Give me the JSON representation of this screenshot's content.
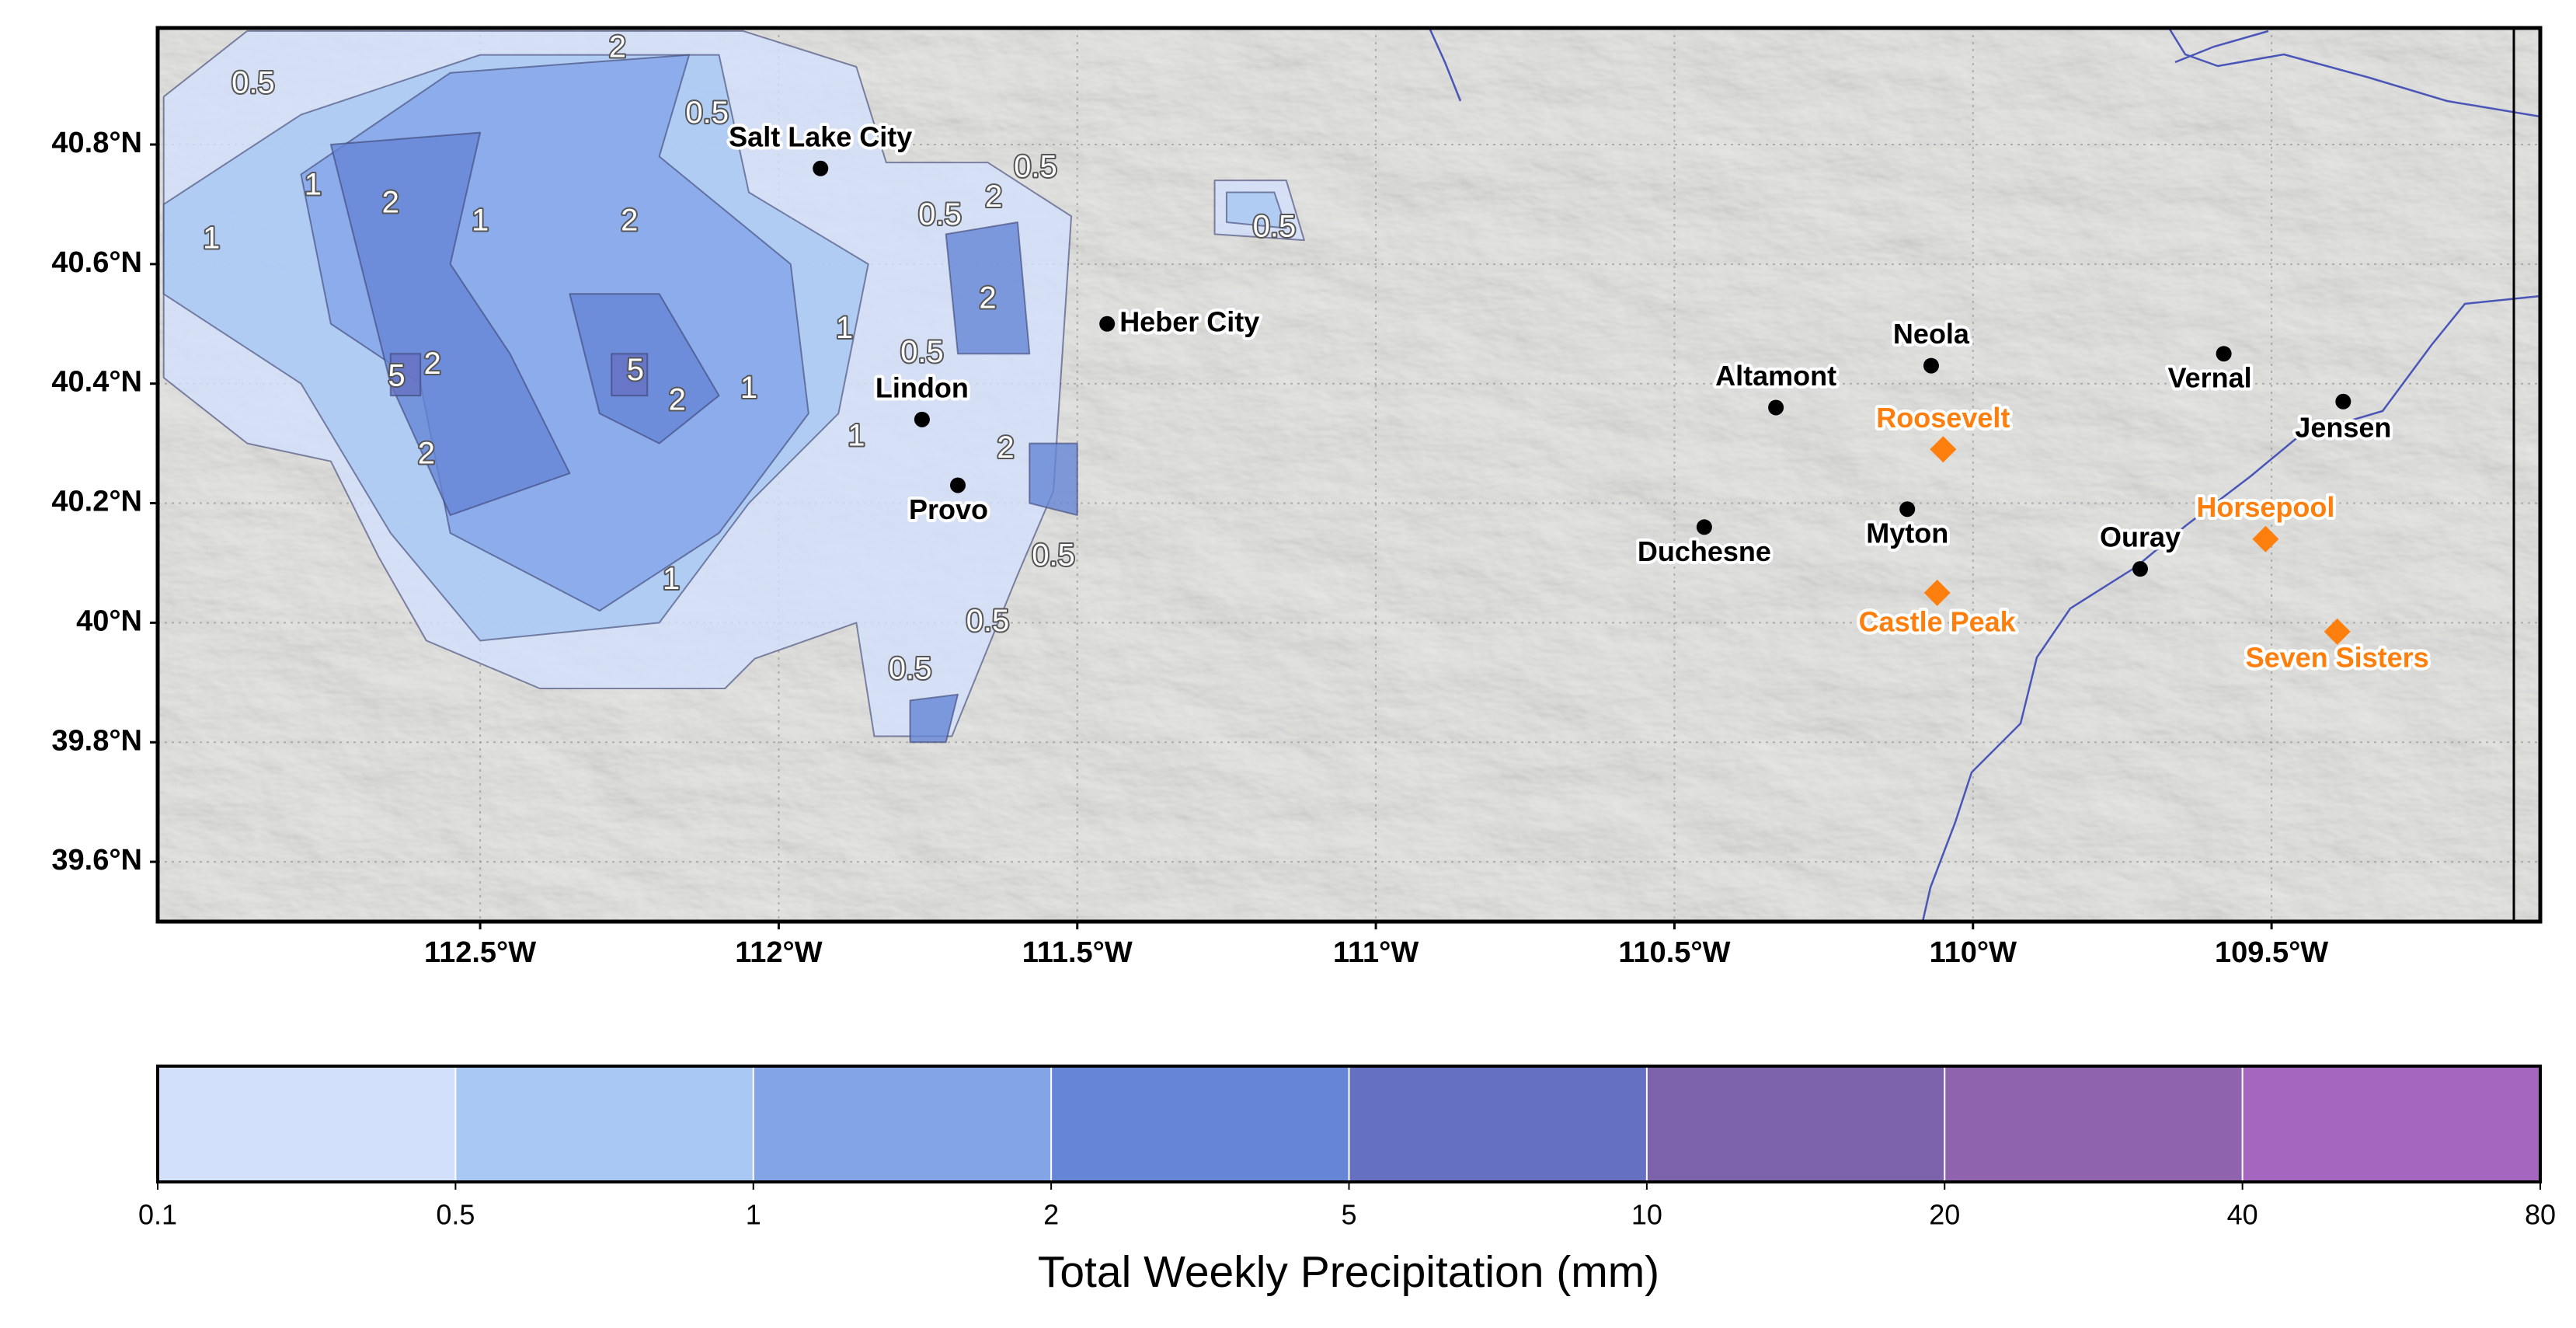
{
  "map": {
    "xlim": [
      -113.04,
      -109.05
    ],
    "ylim": [
      39.5,
      40.995
    ],
    "xticks": [
      {
        "value": -112.5,
        "label": "112.5°W"
      },
      {
        "value": -112,
        "label": "112°W"
      },
      {
        "value": -111.5,
        "label": "111.5°W"
      },
      {
        "value": -111,
        "label": "111°W"
      },
      {
        "value": -110.5,
        "label": "110.5°W"
      },
      {
        "value": -110,
        "label": "110°W"
      },
      {
        "value": -109.5,
        "label": "109.5°W"
      }
    ],
    "yticks": [
      {
        "value": 39.6,
        "label": "39.6°N"
      },
      {
        "value": 39.8,
        "label": "39.8°N"
      },
      {
        "value": 40,
        "label": "40°N"
      },
      {
        "value": 40.2,
        "label": "40.2°N"
      },
      {
        "value": 40.4,
        "label": "40.4°N"
      },
      {
        "value": 40.6,
        "label": "40.6°N"
      },
      {
        "value": 40.8,
        "label": "40.8°N"
      }
    ],
    "grid": true,
    "precip_regions": [
      {
        "level": 0.1,
        "polygon": [
          [
            -113.03,
            40.88
          ],
          [
            -112.89,
            40.99
          ],
          [
            -112.06,
            40.99
          ],
          [
            -111.87,
            40.93
          ],
          [
            -111.82,
            40.77
          ],
          [
            -111.65,
            40.77
          ],
          [
            -111.51,
            40.68
          ],
          [
            -111.54,
            40.22
          ],
          [
            -111.6,
            40.08
          ],
          [
            -111.71,
            39.81
          ],
          [
            -111.84,
            39.81
          ],
          [
            -111.87,
            40.0
          ],
          [
            -112.04,
            39.94
          ],
          [
            -112.09,
            39.89
          ],
          [
            -112.4,
            39.89
          ],
          [
            -112.59,
            39.97
          ],
          [
            -112.67,
            40.11
          ],
          [
            -112.75,
            40.27
          ],
          [
            -112.89,
            40.3
          ],
          [
            -113.03,
            40.41
          ]
        ]
      },
      {
        "level": 0.1,
        "polygon": [
          [
            -111.27,
            40.74
          ],
          [
            -111.15,
            40.74
          ],
          [
            -111.12,
            40.64
          ],
          [
            -111.27,
            40.65
          ]
        ]
      },
      {
        "level": 0.5,
        "polygon": [
          [
            -113.03,
            40.7
          ],
          [
            -112.8,
            40.85
          ],
          [
            -112.5,
            40.95
          ],
          [
            -112.1,
            40.95
          ],
          [
            -112.05,
            40.72
          ],
          [
            -111.85,
            40.6
          ],
          [
            -111.9,
            40.35
          ],
          [
            -112.05,
            40.2
          ],
          [
            -112.2,
            40.0
          ],
          [
            -112.5,
            39.97
          ],
          [
            -112.65,
            40.15
          ],
          [
            -112.8,
            40.4
          ],
          [
            -113.03,
            40.55
          ]
        ]
      },
      {
        "level": 0.5,
        "polygon": [
          [
            -111.25,
            40.72
          ],
          [
            -111.17,
            40.72
          ],
          [
            -111.15,
            40.66
          ],
          [
            -111.25,
            40.67
          ]
        ]
      },
      {
        "level": 1,
        "polygon": [
          [
            -112.8,
            40.75
          ],
          [
            -112.55,
            40.92
          ],
          [
            -112.15,
            40.95
          ],
          [
            -112.2,
            40.78
          ],
          [
            -111.98,
            40.6
          ],
          [
            -111.95,
            40.35
          ],
          [
            -112.1,
            40.15
          ],
          [
            -112.3,
            40.02
          ],
          [
            -112.55,
            40.15
          ],
          [
            -112.6,
            40.4
          ],
          [
            -112.75,
            40.5
          ]
        ]
      },
      {
        "level": 2,
        "polygon": [
          [
            -112.75,
            40.8
          ],
          [
            -112.5,
            40.82
          ],
          [
            -112.55,
            40.6
          ],
          [
            -112.45,
            40.45
          ],
          [
            -112.35,
            40.25
          ],
          [
            -112.55,
            40.18
          ],
          [
            -112.65,
            40.4
          ]
        ]
      },
      {
        "level": 2,
        "polygon": [
          [
            -112.35,
            40.55
          ],
          [
            -112.2,
            40.55
          ],
          [
            -112.1,
            40.38
          ],
          [
            -112.2,
            40.3
          ],
          [
            -112.3,
            40.35
          ]
        ]
      },
      {
        "level": 2,
        "polygon": [
          [
            -111.72,
            40.65
          ],
          [
            -111.6,
            40.67
          ],
          [
            -111.58,
            40.45
          ],
          [
            -111.7,
            40.45
          ]
        ]
      },
      {
        "level": 2,
        "polygon": [
          [
            -111.58,
            40.3
          ],
          [
            -111.5,
            40.3
          ],
          [
            -111.5,
            40.18
          ],
          [
            -111.58,
            40.2
          ]
        ]
      },
      {
        "level": 2,
        "polygon": [
          [
            -111.78,
            39.87
          ],
          [
            -111.7,
            39.88
          ],
          [
            -111.72,
            39.8
          ],
          [
            -111.78,
            39.8
          ]
        ]
      },
      {
        "level": 5,
        "polygon": [
          [
            -112.65,
            40.45
          ],
          [
            -112.6,
            40.45
          ],
          [
            -112.6,
            40.38
          ],
          [
            -112.65,
            40.38
          ]
        ]
      },
      {
        "level": 5,
        "polygon": [
          [
            -112.28,
            40.45
          ],
          [
            -112.22,
            40.45
          ],
          [
            -112.22,
            40.38
          ],
          [
            -112.28,
            40.38
          ]
        ]
      }
    ],
    "contour_labels": [
      {
        "value": 2,
        "lon": -112.27,
        "lat": 40.96
      },
      {
        "value": 0.5,
        "lon": -112.88,
        "lat": 40.9
      },
      {
        "value": 1,
        "lon": -112.78,
        "lat": 40.73
      },
      {
        "value": 1,
        "lon": -112.95,
        "lat": 40.64
      },
      {
        "value": 2,
        "lon": -112.65,
        "lat": 40.7
      },
      {
        "value": 1,
        "lon": -112.5,
        "lat": 40.67
      },
      {
        "value": 2,
        "lon": -112.25,
        "lat": 40.67
      },
      {
        "value": 5,
        "lon": -112.64,
        "lat": 40.41
      },
      {
        "value": 2,
        "lon": -112.58,
        "lat": 40.43
      },
      {
        "value": 5,
        "lon": -112.24,
        "lat": 40.42
      },
      {
        "value": 2,
        "lon": -112.17,
        "lat": 40.37
      },
      {
        "value": 1,
        "lon": -112.05,
        "lat": 40.39
      },
      {
        "value": 2,
        "lon": -112.59,
        "lat": 40.28
      },
      {
        "value": 1,
        "lon": -112.18,
        "lat": 40.07
      },
      {
        "value": 0.5,
        "lon": -112.12,
        "lat": 40.85
      },
      {
        "value": 0.5,
        "lon": -111.57,
        "lat": 40.76
      },
      {
        "value": 0.5,
        "lon": -111.73,
        "lat": 40.68
      },
      {
        "value": 2,
        "lon": -111.64,
        "lat": 40.71
      },
      {
        "value": 2,
        "lon": -111.65,
        "lat": 40.54
      },
      {
        "value": 1,
        "lon": -111.89,
        "lat": 40.49
      },
      {
        "value": 0.5,
        "lon": -111.76,
        "lat": 40.45
      },
      {
        "value": 1,
        "lon": -111.87,
        "lat": 40.31
      },
      {
        "value": 2,
        "lon": -111.62,
        "lat": 40.29
      },
      {
        "value": 0.5,
        "lon": -111.54,
        "lat": 40.11
      },
      {
        "value": 0.5,
        "lon": -111.65,
        "lat": 40.0
      },
      {
        "value": 0.5,
        "lon": -111.78,
        "lat": 39.92
      },
      {
        "value": 0.5,
        "lon": -111.17,
        "lat": 40.66
      }
    ],
    "cities": [
      {
        "name": "Salt Lake City",
        "lon": -111.93,
        "lat": 40.76
      },
      {
        "name": "Heber City",
        "lon": -111.45,
        "lat": 40.5
      },
      {
        "name": "Lindon",
        "lon": -111.76,
        "lat": 40.34
      },
      {
        "name": "Provo",
        "lon": -111.7,
        "lat": 40.23
      },
      {
        "name": "Neola",
        "lon": -110.07,
        "lat": 40.43
      },
      {
        "name": "Altamont",
        "lon": -110.33,
        "lat": 40.36
      },
      {
        "name": "Vernal",
        "lon": -109.58,
        "lat": 40.45
      },
      {
        "name": "Jensen",
        "lon": -109.38,
        "lat": 40.37
      },
      {
        "name": "Duchesne",
        "lon": -110.45,
        "lat": 40.16
      },
      {
        "name": "Myton",
        "lon": -110.11,
        "lat": 40.19
      },
      {
        "name": "Ouray",
        "lon": -109.72,
        "lat": 40.09
      }
    ],
    "stations": [
      {
        "name": "Roosevelt",
        "lon": -110.05,
        "lat": 40.29
      },
      {
        "name": "Castle Peak",
        "lon": -110.06,
        "lat": 40.05
      },
      {
        "name": "Horsepool",
        "lon": -109.51,
        "lat": 40.14
      },
      {
        "name": "Seven Sisters",
        "lon": -109.39,
        "lat": 39.985
      }
    ],
    "city_color": "#000000",
    "station_color": "#ff7f0e"
  },
  "colorbar": {
    "boundaries": [
      0.1,
      0.5,
      1,
      2,
      5,
      10,
      20,
      40,
      80
    ],
    "colors": [
      "#d3e0fb",
      "#a8c7f2",
      "#84a4e8",
      "#6586d6",
      "#6670c2",
      "#7c62ab",
      "#8f63ad",
      "#a566c0"
    ],
    "label": "Total Weekly Precipitation (mm)"
  }
}
